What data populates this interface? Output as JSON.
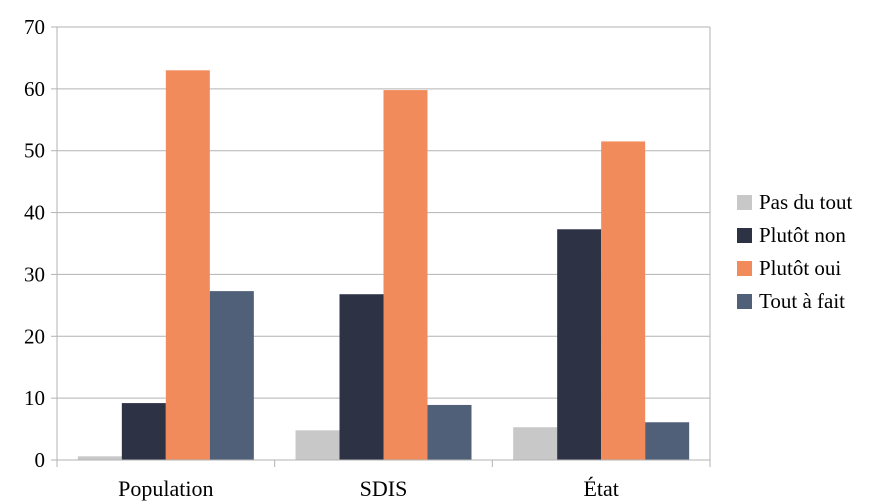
{
  "chart_data": {
    "type": "bar",
    "title": "",
    "xlabel": "",
    "ylabel": "",
    "ylim": [
      0,
      70
    ],
    "yticks": [
      0,
      10,
      20,
      30,
      40,
      50,
      60,
      70
    ],
    "grid": true,
    "legend_position": "right",
    "categories": [
      "Population",
      "SDIS",
      "État"
    ],
    "series": [
      {
        "name": "Pas du tout",
        "color": "#c8c8c8",
        "values": [
          0.6,
          4.8,
          5.3
        ]
      },
      {
        "name": "Plutôt non",
        "color": "#2e3245",
        "values": [
          9.2,
          26.8,
          37.3
        ]
      },
      {
        "name": "Plutôt oui",
        "color": "#f28b5b",
        "values": [
          63.0,
          59.8,
          51.5
        ]
      },
      {
        "name": "Tout à fait",
        "color": "#506078",
        "values": [
          27.3,
          8.9,
          6.1
        ]
      }
    ]
  }
}
